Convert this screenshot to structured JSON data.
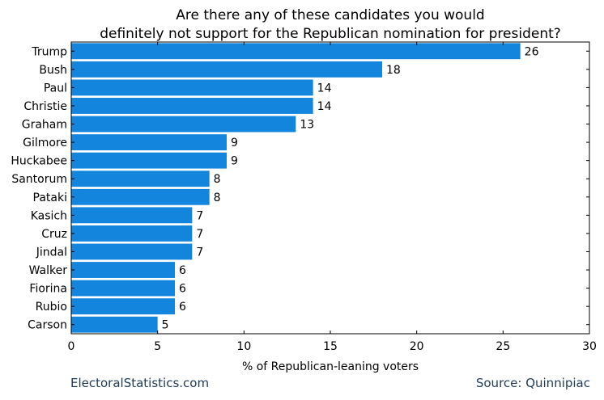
{
  "chart_data": {
    "type": "bar",
    "orientation": "horizontal",
    "title": "Are there any of these candidates you would definitely not support for the Republican nomination for president?",
    "title_lines": [
      "Are there any of these candidates you would",
      "definitely not support for the Republican nomination for president?"
    ],
    "xlabel": "% of Republican-leaning voters",
    "ylabel": "",
    "xlim": [
      0,
      30
    ],
    "xticks": [
      0,
      5,
      10,
      15,
      20,
      25,
      30
    ],
    "grid": false,
    "bar_color": "#1385dc",
    "categories": [
      "Trump",
      "Bush",
      "Paul",
      "Christie",
      "Graham",
      "Gilmore",
      "Huckabee",
      "Santorum",
      "Pataki",
      "Kasich",
      "Cruz",
      "Jindal",
      "Walker",
      "Fiorina",
      "Rubio",
      "Carson"
    ],
    "values": [
      26,
      18,
      14,
      14,
      13,
      9,
      9,
      8,
      8,
      7,
      7,
      7,
      6,
      6,
      6,
      5
    ]
  },
  "footer": {
    "left": "ElectoralStatistics.com",
    "right": "Source: Quinnipiac"
  }
}
